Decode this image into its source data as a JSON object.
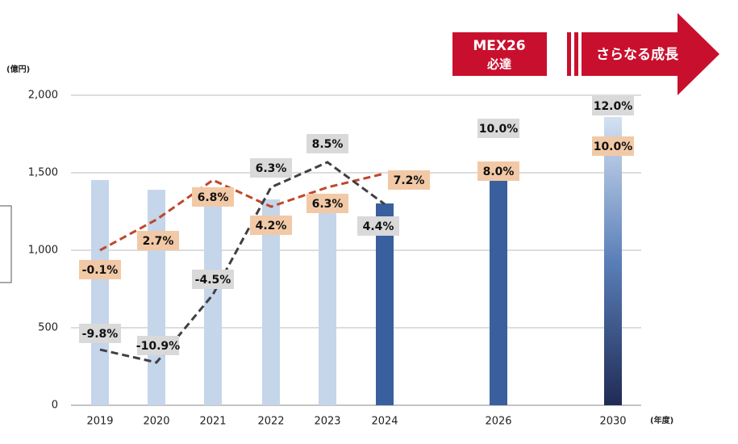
{
  "chart_data": {
    "type": "bar",
    "y_unit": "(億円)",
    "x_unit": "(年度)",
    "categories": [
      "2019",
      "2020",
      "2021",
      "2022",
      "2023",
      "2024",
      "2026",
      "2030"
    ],
    "values": [
      1453,
      1390,
      1312,
      1328,
      1250,
      1302,
      1458,
      1860
    ],
    "colors": [
      "#c5d5ea",
      "#c5d5ea",
      "#c5d5ea",
      "#c5d5ea",
      "#c5d5ea",
      "#3a5f9e",
      "#3a5f9e",
      "#1f2b55"
    ],
    "ylim": [
      0,
      2000
    ],
    "yticks": [
      0,
      500,
      {
        "value": 1000,
        "label": "1,000"
      },
      {
        "value": 1500,
        "label": "1,500"
      },
      {
        "value": 2000,
        "label": "2,000"
      }
    ],
    "grid": true,
    "series": [
      {
        "color": "#c0472a",
        "label_bg": "#f2c9a6",
        "values": [
          1000,
          1198,
          1453,
          1281,
          1406,
          1495,
          null,
          null
        ],
        "value_labels": [
          "-0.1%",
          "2.7%",
          "6.8%",
          "4.2%",
          "6.3%",
          "7.2%",
          "8.0%",
          "10.0%"
        ]
      },
      {
        "color": "#404040",
        "label_bg": "#d9d9d9",
        "values": [
          359,
          276,
          714,
          1406,
          1568,
          1297,
          null,
          null
        ],
        "value_labels": [
          "-9.8%",
          "-10.9%",
          "-4.5%",
          "6.3%",
          "8.5%",
          "4.4%",
          "10.0%",
          "12.0%"
        ]
      }
    ],
    "phases": [
      "MEX26",
      "必達",
      "さらなる成長"
    ]
  }
}
